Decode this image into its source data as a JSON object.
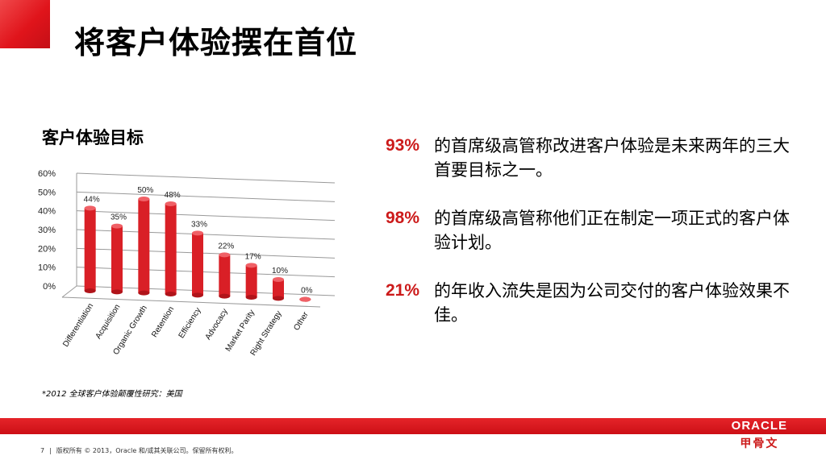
{
  "slide": {
    "title": "将客户体验摆在首位",
    "subtitle": "客户体验目标",
    "footnote": "*2012 全球客户体验颠覆性研究：美国",
    "page_number": "7",
    "copyright": "版权所有 © 2013，Oracle 和/或其关联公司。保留所有权利。",
    "accent_color": "#d0161c"
  },
  "stats": [
    {
      "pct": "93%",
      "text": "的首席级高管称改进客户体验是未来两年的三大首要目标之一。"
    },
    {
      "pct": "98%",
      "text": "的首席级高管称他们正在制定一项正式的客户体验计划。"
    },
    {
      "pct": "21%",
      "text": "的年收入流失是因为公司交付的客户体验效果不佳。"
    }
  ],
  "logo": {
    "brand": "ORACLE",
    "cn": "甲骨文"
  },
  "chart_data": {
    "type": "bar",
    "categories": [
      "Differentiation",
      "Acquisition",
      "Organic Growth",
      "Retention",
      "Efficiency",
      "Advocacy",
      "Market Parity",
      "Right Strategy",
      "Other"
    ],
    "values": [
      44,
      35,
      50,
      48,
      33,
      22,
      17,
      10,
      0
    ],
    "value_labels": [
      "44%",
      "35%",
      "50%",
      "48%",
      "33%",
      "22%",
      "17%",
      "10%",
      "0%"
    ],
    "y_ticks": [
      "0%",
      "10%",
      "20%",
      "30%",
      "40%",
      "50%",
      "60%"
    ],
    "ylim": [
      0,
      60
    ],
    "grid": true,
    "bar_color": "#d91f26"
  }
}
